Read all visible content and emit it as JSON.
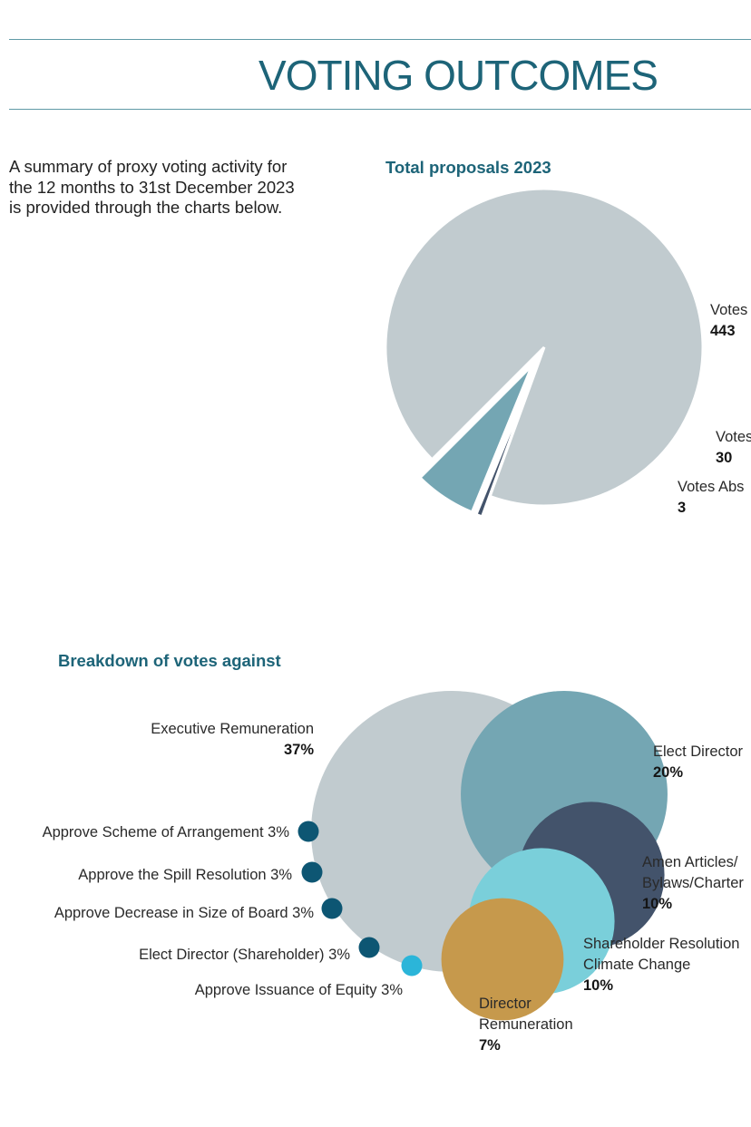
{
  "page": {
    "title": "VOTING OUTCOMES",
    "intro_lines": [
      "A summary of proxy voting activity for",
      "the 12 months to 31st December 2023",
      "is provided through the charts below."
    ]
  },
  "colors": {
    "accent": "#1d6478",
    "rule": "#5f9aa6",
    "pie_for": "#c1cbcf",
    "pie_against": "#74a6b3",
    "pie_abstain": "#43536b"
  },
  "chart_data": [
    {
      "type": "pie",
      "title": "Total proposals 2023",
      "slices": [
        {
          "label": "Votes",
          "value": 443,
          "color": "#c1cbcf",
          "exploded": false
        },
        {
          "label": "Votes",
          "value": 30,
          "color": "#74a6b3",
          "exploded": true
        },
        {
          "label": "Votes Abs",
          "value": 3,
          "color": "#43536b",
          "exploded": true
        }
      ],
      "legend": "labels beside slices"
    },
    {
      "type": "bubble",
      "title": "Breakdown of votes against",
      "unit": "%",
      "items": [
        {
          "label": "Executive Remuneration",
          "value": 37,
          "color": "#c1cbcf"
        },
        {
          "label": "Elect Director",
          "value": 20,
          "color": "#74a6b3"
        },
        {
          "label": "Amen Articles/ Bylaws/Charter",
          "label_lines": [
            "Amen Articles/",
            "Bylaws/Charter"
          ],
          "value": 10,
          "color": "#43536b"
        },
        {
          "label": "Shareholder Resolution Climate Change",
          "label_lines": [
            "Shareholder Resolution",
            "Climate Change"
          ],
          "value": 10,
          "color": "#7acfda"
        },
        {
          "label": "Director Remuneration",
          "label_lines": [
            "Director",
            "Remuneration"
          ],
          "value": 7,
          "color": "#c6994c"
        },
        {
          "label": "Approve Scheme of Arrangement",
          "value": 3,
          "color": "#0d5673"
        },
        {
          "label": "Approve the Spill Resolution",
          "value": 3,
          "color": "#0d5673"
        },
        {
          "label": "Approve Decrease in Size of Board",
          "value": 3,
          "color": "#0d5673"
        },
        {
          "label": "Elect Director (Shareholder)",
          "value": 3,
          "color": "#0d5673"
        },
        {
          "label": "Approve Issuance of Equity",
          "value": 3,
          "color": "#2bb5d9"
        }
      ]
    }
  ]
}
